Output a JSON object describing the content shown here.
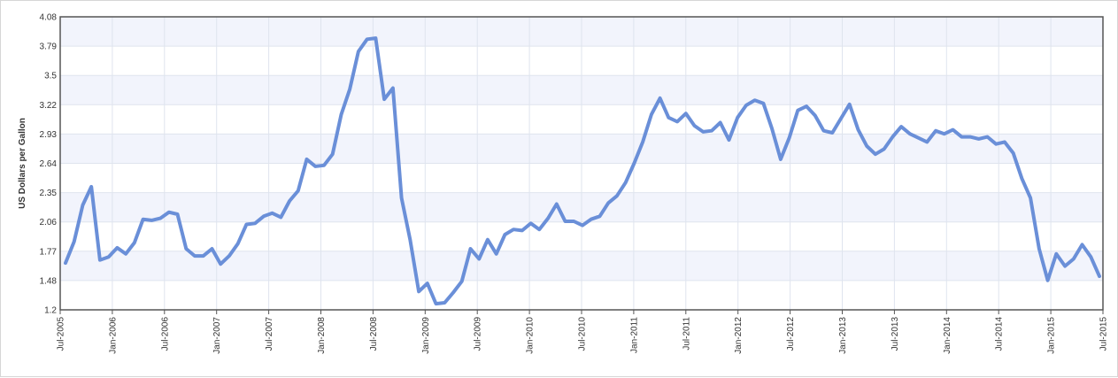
{
  "chart_data": {
    "type": "line",
    "ylabel": "US Dollars per Gallon",
    "xlabel": "",
    "title": "",
    "ylim": [
      1.2,
      4.08
    ],
    "y_ticks": [
      "1.2",
      "1.48",
      "1.77",
      "2.06",
      "2.35",
      "2.64",
      "2.93",
      "3.22",
      "3.5",
      "3.79",
      "4.08"
    ],
    "x_tick_labels": [
      "Jul-2005",
      "Jan-2006",
      "Jul-2006",
      "Jan-2007",
      "Jul-2007",
      "Jan-2008",
      "Jul-2008",
      "Jan-2009",
      "Jul-2009",
      "Jan-2010",
      "Jul-2010",
      "Jan-2011",
      "Jul-2011",
      "Jan-2012",
      "Jul-2012",
      "Jan-2013",
      "Jul-2013",
      "Jan-2014",
      "Jul-2014",
      "Jan-2015",
      "Jul-2015"
    ],
    "grid": true,
    "colors": {
      "line": "#6a8fd8",
      "band": "#f2f4fc",
      "grid": "#dfe4ee",
      "plot_border": "#555555"
    },
    "series": [
      {
        "values": [
          1.66,
          1.87,
          2.23,
          2.41,
          1.69,
          1.72,
          1.81,
          1.75,
          1.86,
          2.09,
          2.08,
          2.1,
          2.16,
          2.14,
          1.8,
          1.73,
          1.73,
          1.8,
          1.65,
          1.73,
          1.85,
          2.04,
          2.05,
          2.12,
          2.15,
          2.11,
          2.27,
          2.37,
          2.68,
          2.61,
          2.62,
          2.73,
          3.12,
          3.37,
          3.74,
          3.86,
          3.87,
          3.27,
          3.38,
          2.3,
          1.89,
          1.38,
          1.46,
          1.26,
          1.27,
          1.37,
          1.48,
          1.8,
          1.7,
          1.89,
          1.75,
          1.94,
          1.99,
          1.98,
          2.05,
          1.99,
          2.1,
          2.24,
          2.07,
          2.07,
          2.03,
          2.09,
          2.12,
          2.25,
          2.32,
          2.45,
          2.64,
          2.85,
          3.12,
          3.28,
          3.09,
          3.05,
          3.13,
          3.01,
          2.95,
          2.96,
          3.04,
          2.87,
          3.09,
          3.21,
          3.26,
          3.23,
          2.98,
          2.68,
          2.89,
          3.16,
          3.2,
          3.11,
          2.96,
          2.94,
          3.08,
          3.22,
          2.97,
          2.81,
          2.73,
          2.78,
          2.9,
          3.0,
          2.93,
          2.89,
          2.85,
          2.96,
          2.93,
          2.97,
          2.9,
          2.9,
          2.88,
          2.9,
          2.83,
          2.85,
          2.74,
          2.49,
          2.3,
          1.8,
          1.49,
          1.75,
          1.63,
          1.7,
          1.84,
          1.72,
          1.53
        ]
      }
    ]
  }
}
